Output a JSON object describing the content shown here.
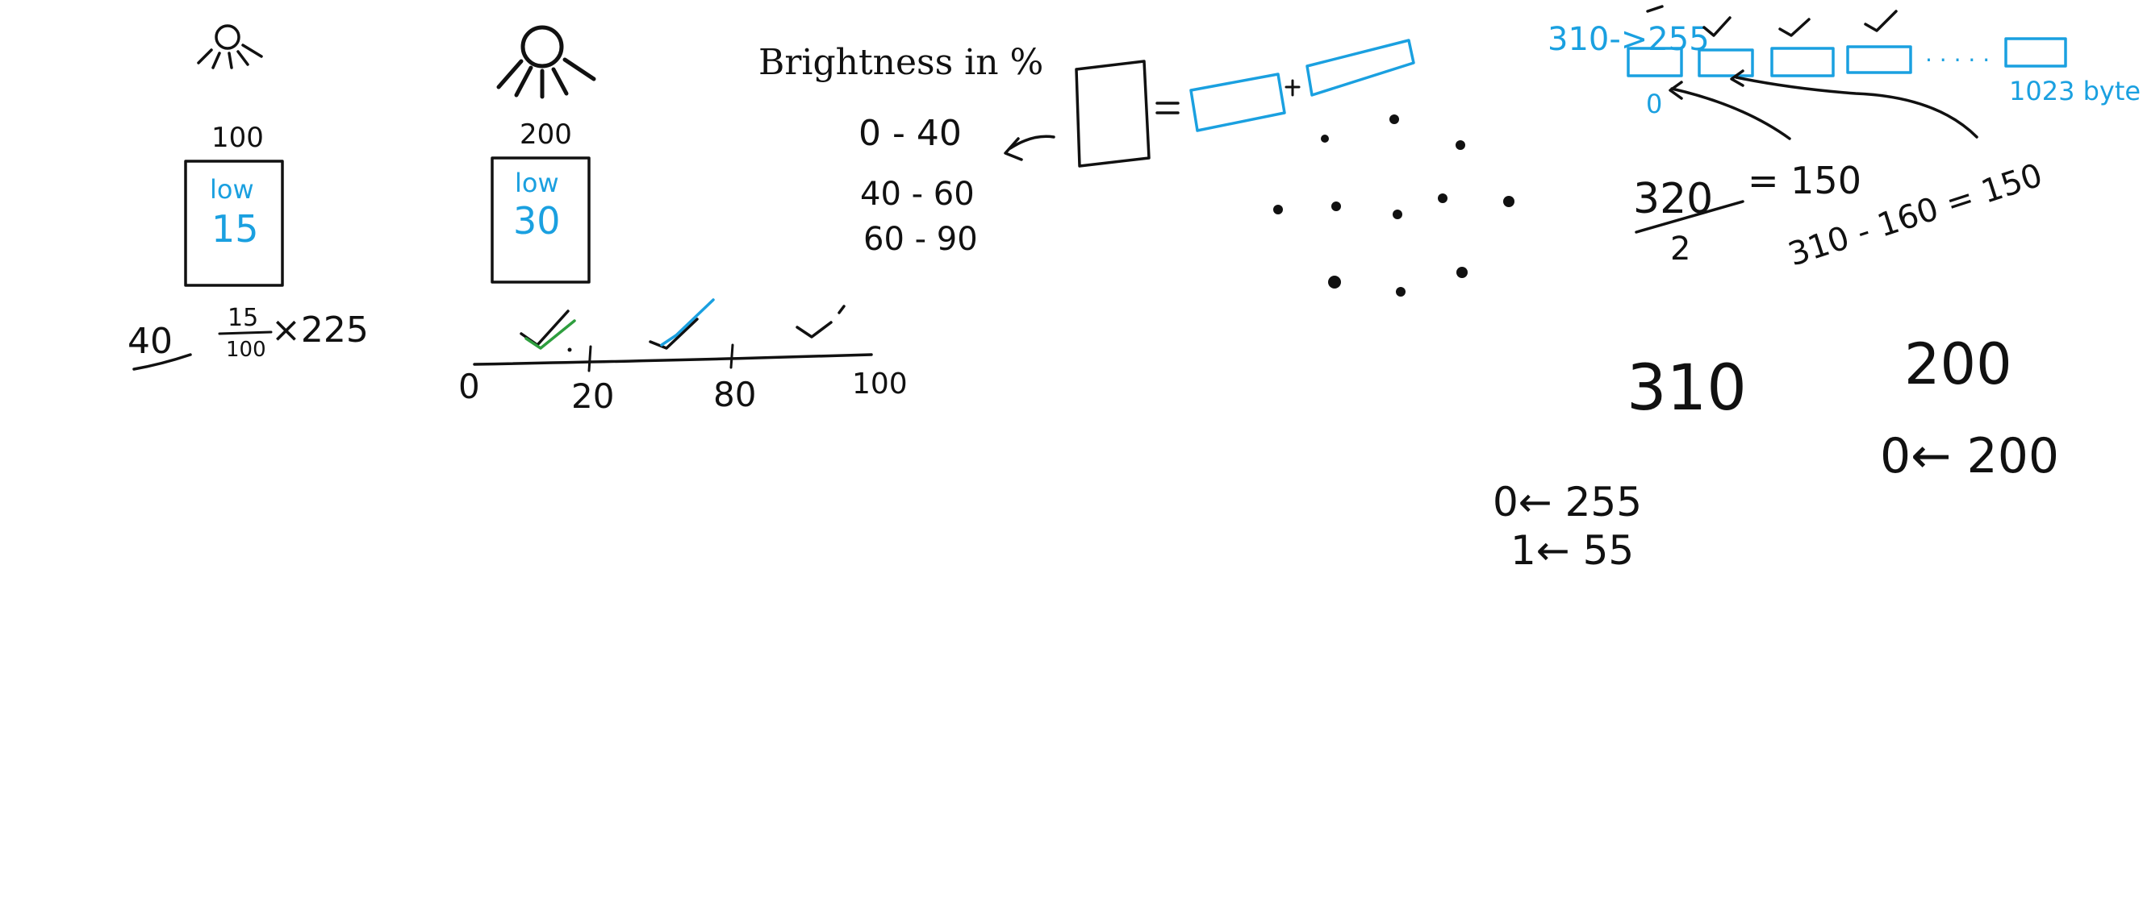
{
  "colors": {
    "ink_black": "#111111",
    "ink_blue": "#1aa0e0",
    "ink_green": "#2e9e3e",
    "background": "#ffffff"
  },
  "left_panel": {
    "sun_small_value": "100",
    "sun_large_value": "200",
    "box1_low_label": "low",
    "box1_low_value": "15",
    "box2_low_label": "low",
    "box2_low_value": "30",
    "underlined_value": "40",
    "fraction_numerator": "15",
    "fraction_denominator": "100",
    "multiplier": "×225",
    "numberline_ticks": [
      "0",
      "20",
      "80",
      "100"
    ]
  },
  "brightness": {
    "title": "Brightness in %",
    "ranges": [
      "0 - 40",
      "40 - 60",
      "60 - 90"
    ]
  },
  "memory": {
    "top_label": "310->255",
    "first_index": "0",
    "last_label": "1023 byte",
    "ellipsis": ". . . . .",
    "fraction_numerator": "320",
    "fraction_denominator": "2",
    "equals_result": "= 150",
    "subtraction": "310 - 160 = 150"
  },
  "bottom_values": {
    "big_310": "310",
    "big_200": "200",
    "map_0_255": "0← 255",
    "map_1_55": "1← 55",
    "map_0_200": "0← 200"
  },
  "icons": [
    "sun-small-icon",
    "sun-large-icon",
    "checkmark-icon",
    "arrow-icon"
  ]
}
